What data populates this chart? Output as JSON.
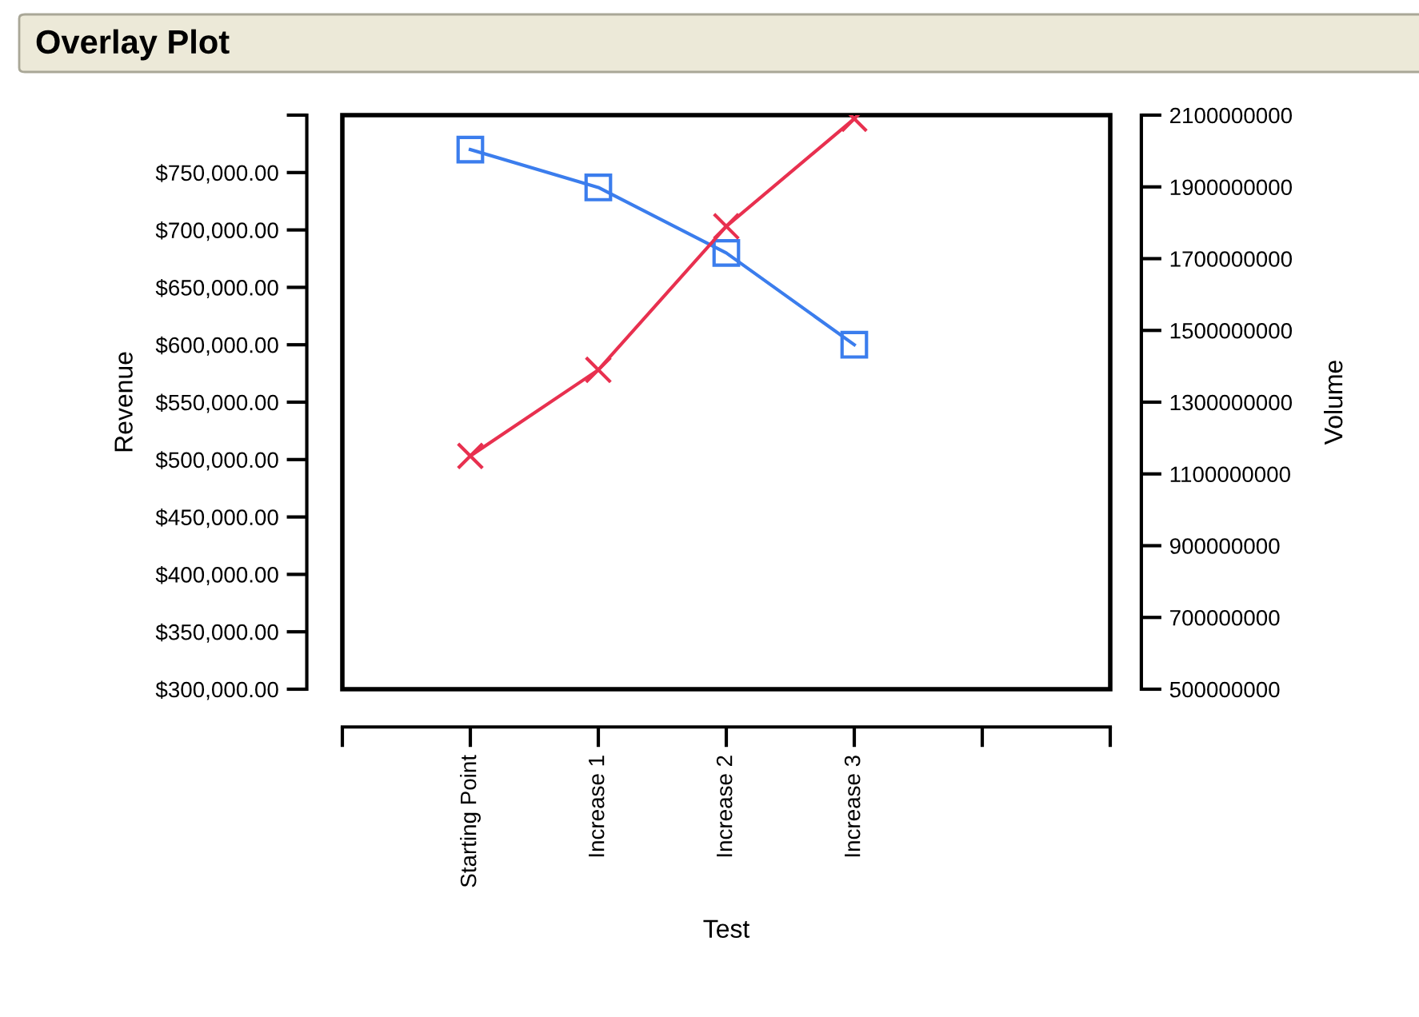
{
  "chart_data": {
    "type": "line",
    "title": "Overlay Plot",
    "xlabel": "Test",
    "ylabel": "Revenue",
    "y2label": "Volume",
    "categories": [
      "Starting Point",
      "Increase 1",
      "Increase 2",
      "Increase 3",
      null
    ],
    "series": [
      {
        "color": "#3b7ded",
        "marker": "square",
        "values": [
          770000,
          737000,
          680000,
          600000,
          null
        ]
      },
      {
        "color": "#e8304f",
        "marker": "cross",
        "axis": "y2",
        "values": [
          1150000000,
          1390000000,
          1790000000,
          2090000000,
          null
        ]
      }
    ],
    "ylim": [
      300000,
      800000
    ],
    "yticks": [
      {
        "value": 300000,
        "label": "$300,000.00"
      },
      {
        "value": 350000,
        "label": "$350,000.00"
      },
      {
        "value": 400000,
        "label": "$400,000.00"
      },
      {
        "value": 450000,
        "label": "$450,000.00"
      },
      {
        "value": 500000,
        "label": "$500,000.00"
      },
      {
        "value": 550000,
        "label": "$550,000.00"
      },
      {
        "value": 600000,
        "label": "$600,000.00"
      },
      {
        "value": 650000,
        "label": "$650,000.00"
      },
      {
        "value": 700000,
        "label": "$700,000.00"
      },
      {
        "value": 750000,
        "label": "$750,000.00"
      },
      {
        "value": 800000,
        "label": null
      }
    ],
    "y2lim": [
      500000000,
      2100000000
    ],
    "y2ticks": [
      500000000,
      700000000,
      900000000,
      1100000000,
      1300000000,
      1500000000,
      1700000000,
      1900000000,
      2100000000
    ],
    "grid": false,
    "line_style": "solid"
  }
}
